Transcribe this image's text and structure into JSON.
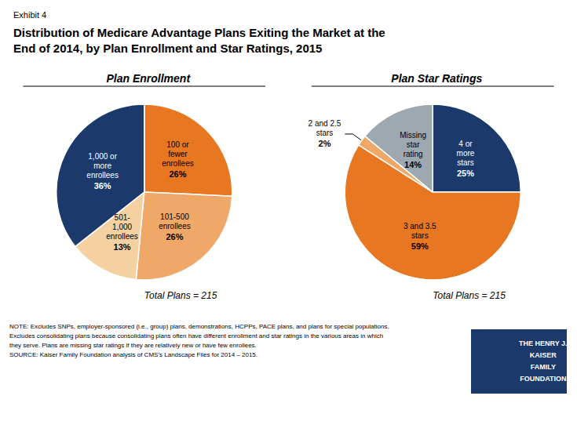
{
  "title": "Distribution of Medicare Advantage Plans Exiting the Market at the\nEnd of 2014, by Plan Enrollment and Star Ratings, 2015",
  "subtitle": "Exhibit 4",
  "annotations": [
    "NOTE: Excludes SNPs, employer-sponsored (i.e., group) plans, demonstrations, HCPPs, PACE plans, and plans for special populations.\nExcludes consolidating plans because consolidating plans often have different enrollment and star ratings in the various areas in which\nthey serve. Plans are missing star ratings if they are relatively new or have few enrollees.\nSOURCE: Kaiser Family Foundation analysis of CMS’s Landscape Files for 2014 – 2015.",
    "THE HENRY J.\nKAISER\nFAMILY\nFOUNDATION"
  ],
  "chart_data": [
    {
      "type": "pie",
      "title": "Plan Enrollment",
      "categories": [
        "100 or\nfewer\nenrollees",
        "101-500\nenrollees",
        "501-\n1,000\nenrollees",
        "1,000 or\nmore\nenrollees"
      ],
      "values": [
        26,
        26,
        13,
        36
      ],
      "value_labels": [
        "26%",
        "26%",
        "13%",
        "36%"
      ],
      "colors": [
        "#E87722",
        "#F0A868",
        "#F5D0A0",
        "#1B3A6B"
      ],
      "data_labels": true,
      "legend": false,
      "annotations": [
        "Total Plans = 215"
      ]
    },
    {
      "type": "pie",
      "title": "Plan Star Ratings",
      "categories": [
        "4 or\nmore\nstars",
        "3 and 3.5\nstars",
        "2 and 2.5\nstars",
        "Missing\nstar\nrating"
      ],
      "values": [
        25,
        59,
        2,
        14
      ],
      "value_labels": [
        "25%",
        "59%",
        "2%",
        "14%"
      ],
      "colors": [
        "#1B3A6B",
        "#E87722",
        "#F0A868",
        "#9EA8B0"
      ],
      "data_labels": true,
      "legend": false,
      "annotations": [
        "Total Plans = 215"
      ]
    }
  ]
}
